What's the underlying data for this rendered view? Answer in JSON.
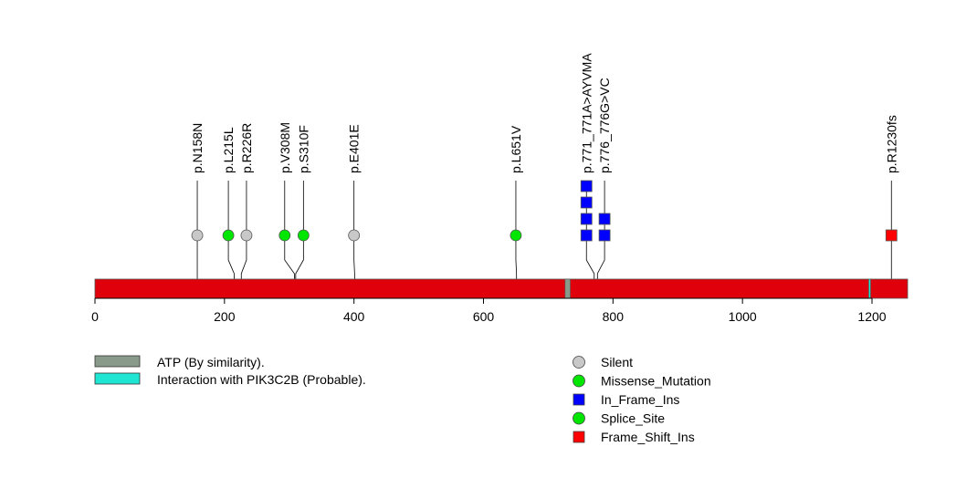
{
  "chart_data": {
    "type": "lollipop",
    "protein_length": 1255,
    "xlim": [
      0,
      1255
    ],
    "x_ticks": [
      0,
      200,
      400,
      600,
      800,
      1000,
      1200
    ],
    "colors": {
      "backbone": "#E0000B",
      "silent": "#C8C8C8",
      "missense": "#00E600",
      "in_frame_ins": "#0000FF",
      "splice": "#00E600",
      "frameshift": "#FF0000",
      "atp": "#8A9A8A",
      "interaction": "#1EE6D2"
    },
    "domains": [
      {
        "name": "atp",
        "start": 726,
        "end": 734,
        "fill": "#8A9A8A"
      },
      {
        "name": "interaction",
        "start": 1195,
        "end": 1197,
        "fill": "#1EE6D2"
      }
    ],
    "mutations": [
      {
        "label": "p.N158N",
        "position": 158,
        "label_pos": 158,
        "count": 1,
        "type": "Silent",
        "shape": "circle"
      },
      {
        "label": "p.L215L",
        "position": 215,
        "label_pos": 206,
        "count": 1,
        "type": "Missense_Mutation",
        "shape": "circle"
      },
      {
        "label": "p.R226R",
        "position": 226,
        "label_pos": 234,
        "count": 1,
        "type": "Silent",
        "shape": "circle"
      },
      {
        "label": "p.V308M",
        "position": 308,
        "label_pos": 293,
        "count": 1,
        "type": "Missense_Mutation",
        "shape": "circle"
      },
      {
        "label": "p.S310F",
        "position": 310,
        "label_pos": 322,
        "count": 1,
        "type": "Missense_Mutation",
        "shape": "circle"
      },
      {
        "label": "p.E401E",
        "position": 401,
        "label_pos": 400,
        "count": 1,
        "type": "Silent",
        "shape": "circle"
      },
      {
        "label": "p.L651V",
        "position": 651,
        "label_pos": 650,
        "count": 1,
        "type": "Missense_Mutation",
        "shape": "circle"
      },
      {
        "label": "p.771_771A>AYVMA",
        "position": 771,
        "label_pos": 759,
        "count": 4,
        "type": "In_Frame_Ins",
        "shape": "square"
      },
      {
        "label": "p.776_776G>VC",
        "position": 776,
        "label_pos": 787,
        "count": 2,
        "type": "In_Frame_Ins",
        "shape": "square"
      },
      {
        "label": "p.R1230fs",
        "position": 1230,
        "label_pos": 1230,
        "count": 1,
        "type": "Frame_Shift_Ins",
        "shape": "square"
      }
    ],
    "domain_legend": [
      {
        "label": "ATP (By similarity).",
        "color": "#8A9A8A"
      },
      {
        "label": "Interaction with PIK3C2B (Probable).",
        "color": "#1EE6D2"
      }
    ],
    "mutation_legend": [
      {
        "label": "Silent",
        "shape": "circle",
        "color": "#C8C8C8"
      },
      {
        "label": "Missense_Mutation",
        "shape": "circle",
        "color": "#00E600"
      },
      {
        "label": "In_Frame_Ins",
        "shape": "square",
        "color": "#0000FF"
      },
      {
        "label": "Splice_Site",
        "shape": "circle",
        "color": "#00E600"
      },
      {
        "label": "Frame_Shift_Ins",
        "shape": "square",
        "color": "#FF0000"
      }
    ]
  }
}
